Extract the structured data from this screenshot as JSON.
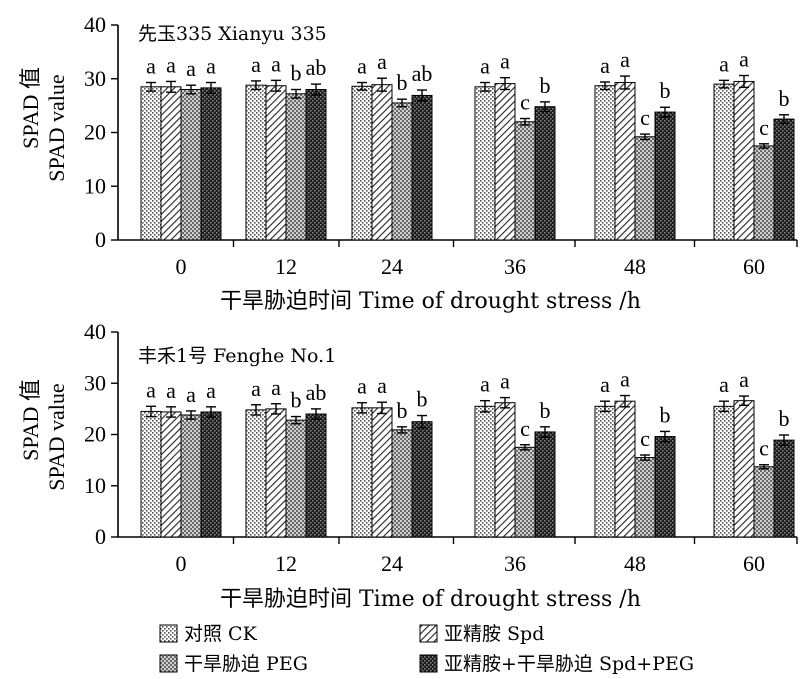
{
  "colors": {
    "axis": "#000000",
    "background": "#ffffff"
  },
  "legend": [
    {
      "label": "对照  CK",
      "pattern": "dots"
    },
    {
      "label": "亚精胺   Spd",
      "pattern": "diag"
    },
    {
      "label": "干旱胁迫  PEG",
      "pattern": "cross"
    },
    {
      "label": "亚精胺+干旱胁迫   Spd+PEG",
      "pattern": "dark"
    }
  ],
  "chart_data": [
    {
      "type": "bar",
      "title": "先玉335 Xianyu 335",
      "ylabel_cn": "SPAD 值",
      "ylabel_en": "SPAD value",
      "xlabel": "干旱胁迫时间  Time of drought stress /h",
      "ylim": [
        0,
        40
      ],
      "yticks": [
        0,
        10,
        20,
        30,
        40
      ],
      "categories": [
        "0",
        "12",
        "24",
        "36",
        "48",
        "60"
      ],
      "series": [
        {
          "name": "对照  CK",
          "values": [
            28.5,
            28.8,
            28.6,
            28.5,
            28.7,
            29.0
          ],
          "errors": [
            0.8,
            0.8,
            0.7,
            0.8,
            0.7,
            0.7
          ],
          "labels": [
            "a",
            "a",
            "a",
            "a",
            "a",
            "a"
          ]
        },
        {
          "name": "亚精胺   Spd",
          "values": [
            28.5,
            28.7,
            28.9,
            29.1,
            29.3,
            29.5
          ],
          "errors": [
            1.0,
            1.0,
            1.2,
            1.1,
            1.2,
            1.1
          ],
          "labels": [
            "a",
            "a",
            "a",
            "a",
            "a",
            "a"
          ]
        },
        {
          "name": "干旱胁迫  PEG",
          "values": [
            28.0,
            27.2,
            25.5,
            22.0,
            19.2,
            17.5
          ],
          "errors": [
            0.8,
            0.8,
            0.7,
            0.6,
            0.5,
            0.4
          ],
          "labels": [
            "a",
            "b",
            "b",
            "c",
            "c",
            "c"
          ]
        },
        {
          "name": "亚精胺+干旱胁迫   Spd+PEG",
          "values": [
            28.3,
            28.0,
            26.9,
            24.8,
            23.8,
            22.5
          ],
          "errors": [
            1.0,
            1.0,
            1.0,
            0.9,
            0.9,
            0.8
          ],
          "labels": [
            "a",
            "ab",
            "ab",
            "b",
            "b",
            "b"
          ]
        }
      ]
    },
    {
      "type": "bar",
      "title": "丰禾1号 Fenghe No.1",
      "ylabel_cn": "SPAD 值",
      "ylabel_en": "SPAD value",
      "xlabel": "干旱胁迫时间  Time of drought stress /h",
      "ylim": [
        0,
        40
      ],
      "yticks": [
        0,
        10,
        20,
        30,
        40
      ],
      "categories": [
        "0",
        "12",
        "24",
        "36",
        "48",
        "60"
      ],
      "series": [
        {
          "name": "对照  CK",
          "values": [
            24.5,
            24.8,
            25.2,
            25.5,
            25.5,
            25.5
          ],
          "errors": [
            1.0,
            1.0,
            1.0,
            1.1,
            1.0,
            1.0
          ],
          "labels": [
            "a",
            "a",
            "a",
            "a",
            "a",
            "a"
          ]
        },
        {
          "name": "亚精胺   Spd",
          "values": [
            24.4,
            25.0,
            25.2,
            26.2,
            26.5,
            26.6
          ],
          "errors": [
            1.0,
            1.0,
            1.1,
            1.0,
            1.1,
            0.9
          ],
          "labels": [
            "a",
            "a",
            "a",
            "a",
            "a",
            "a"
          ]
        },
        {
          "name": "干旱胁迫  PEG",
          "values": [
            23.8,
            22.8,
            20.9,
            17.5,
            15.5,
            13.7
          ],
          "errors": [
            0.8,
            0.7,
            0.6,
            0.5,
            0.5,
            0.4
          ],
          "labels": [
            "a",
            "b",
            "b",
            "c",
            "c",
            "c"
          ]
        },
        {
          "name": "亚精胺+干旱胁迫   Spd+PEG",
          "values": [
            24.4,
            24.0,
            22.5,
            20.5,
            19.6,
            18.9
          ],
          "errors": [
            1.0,
            1.0,
            1.2,
            1.0,
            1.0,
            1.0
          ],
          "labels": [
            "a",
            "ab",
            "b",
            "b",
            "b",
            "b"
          ]
        }
      ]
    }
  ]
}
